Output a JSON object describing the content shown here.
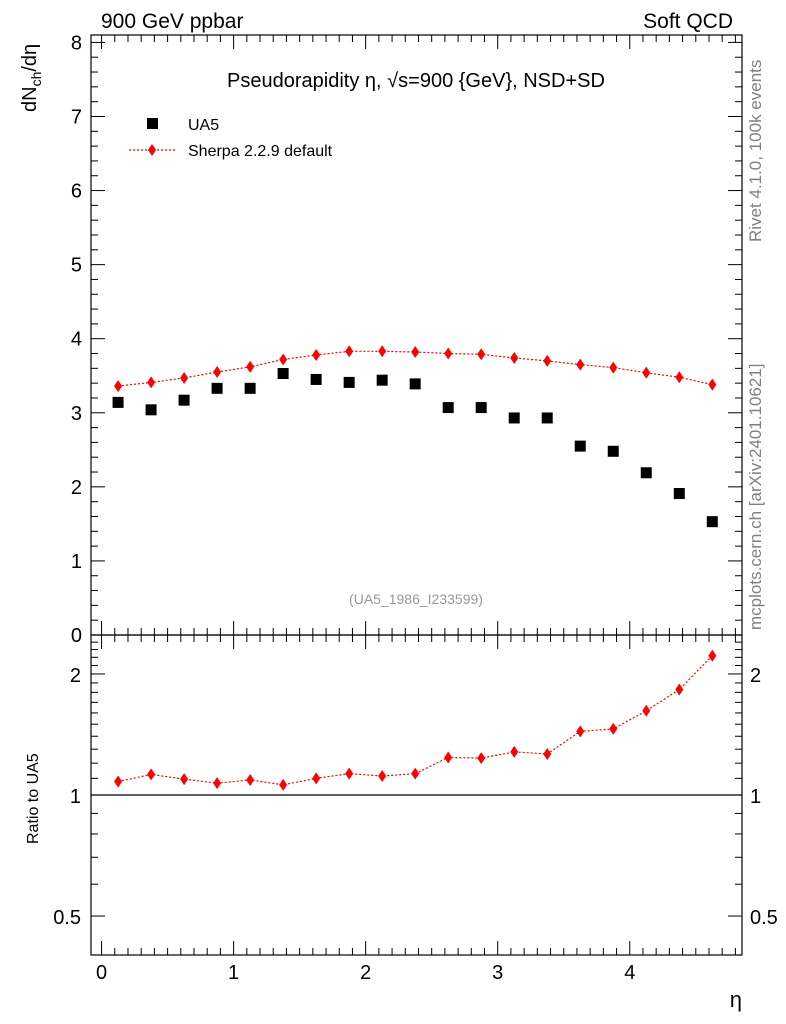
{
  "header": {
    "left": "900 GeV ppbar",
    "right": "Soft QCD"
  },
  "side_labels": {
    "top": "Rivet 4.1.0,  100k events",
    "bottom": "mcplots.cern.ch [arXiv:2401.10621]"
  },
  "colors": {
    "data": "#000000",
    "mc": "#ff0000",
    "watermark": "#999999"
  },
  "chart_data": [
    {
      "type": "scatter",
      "panel": "main",
      "title_prefix": "Pseudorapidity η, ",
      "title_sqrt": "√s",
      "title_suffix": "=900 {GeV}, NSD+SD",
      "ylabel_main": "dN",
      "ylabel_sub": "ch",
      "ylabel_tail": "/dη",
      "ylim": [
        0,
        8.1
      ],
      "yticks": [
        0,
        1,
        2,
        3,
        4,
        5,
        6,
        7,
        8
      ],
      "yticklabels": [
        "0",
        "1",
        "2",
        "3",
        "4",
        "5",
        "6",
        "7",
        "8"
      ],
      "xlim": [
        -0.08,
        4.85
      ],
      "watermark": "(UA5_1986_I233599)",
      "legend": {
        "position": "top-left",
        "data_label": "UA5",
        "mc_label": "Sherpa 2.2.9 default"
      },
      "x": [
        0.125,
        0.375,
        0.625,
        0.875,
        1.125,
        1.375,
        1.625,
        1.875,
        2.125,
        2.375,
        2.625,
        2.875,
        3.125,
        3.375,
        3.625,
        3.875,
        4.125,
        4.375,
        4.625
      ],
      "series": [
        {
          "name": "UA5",
          "values": [
            3.14,
            3.04,
            3.17,
            3.33,
            3.33,
            3.53,
            3.45,
            3.41,
            3.44,
            3.39,
            3.07,
            3.07,
            2.93,
            2.93,
            2.55,
            2.48,
            2.19,
            1.91,
            1.53
          ]
        },
        {
          "name": "Sherpa 2.2.9 default",
          "values": [
            3.36,
            3.41,
            3.47,
            3.55,
            3.62,
            3.72,
            3.78,
            3.83,
            3.83,
            3.82,
            3.8,
            3.79,
            3.74,
            3.7,
            3.65,
            3.61,
            3.54,
            3.48,
            3.38
          ]
        }
      ]
    },
    {
      "type": "line",
      "panel": "ratio",
      "ylabel": "Ratio to UA5",
      "yscale": "log",
      "ylim": [
        0.4,
        2.5
      ],
      "yticks": [
        0.5,
        1,
        2
      ],
      "yticklabels": [
        "0.5",
        "1",
        "2"
      ],
      "xlabel": "η",
      "xlim": [
        -0.08,
        4.85
      ],
      "xticks": [
        0,
        1,
        2,
        3,
        4
      ],
      "xticklabels": [
        "0",
        "1",
        "2",
        "3",
        "4"
      ],
      "reference_line": 1,
      "series": [
        {
          "name": "Sherpa 2.2.9 default / UA5",
          "values": [
            1.08,
            1.125,
            1.095,
            1.07,
            1.09,
            1.06,
            1.1,
            1.13,
            1.115,
            1.13,
            1.24,
            1.235,
            1.28,
            1.265,
            1.44,
            1.46,
            1.62,
            1.83,
            2.22
          ]
        }
      ]
    }
  ]
}
